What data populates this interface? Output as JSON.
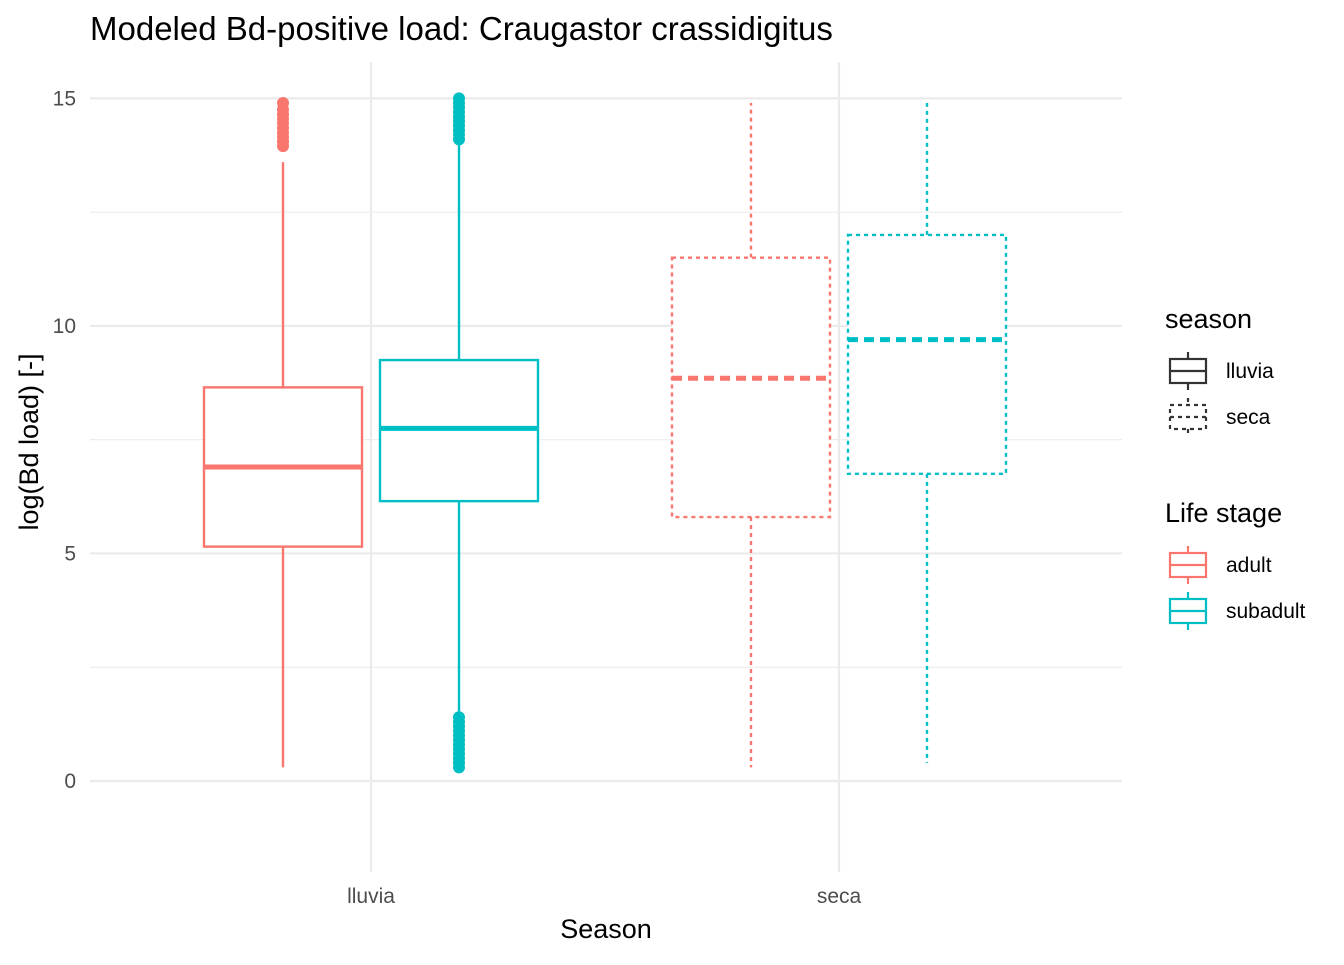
{
  "chart_data": {
    "type": "boxplot",
    "title": "Modeled Bd-positive load: Craugastor crassidigitus",
    "xlabel": "Season",
    "ylabel": "log(Bd load) [-]",
    "categories": [
      "lluvia",
      "seca"
    ],
    "ylim": [
      -2,
      15.8
    ],
    "yticks": [
      0,
      5,
      10,
      15
    ],
    "grid": true,
    "colors": {
      "adult": "#F8766D",
      "subadult": "#00BFC4"
    },
    "series": [
      {
        "name": "adult",
        "boxes": [
          {
            "category": "lluvia",
            "season": "lluvia",
            "whisker_low": 0.3,
            "q1": 5.15,
            "median": 6.9,
            "q3": 8.65,
            "whisker_high": 13.6,
            "outliers": [
              13.95,
              14.05,
              14.15,
              14.25,
              14.35,
              14.45,
              14.55,
              14.65,
              14.75,
              14.9
            ]
          },
          {
            "category": "seca",
            "season": "seca",
            "whisker_low": 0.3,
            "q1": 5.8,
            "median": 8.85,
            "q3": 11.5,
            "whisker_high": 14.9,
            "outliers": []
          }
        ]
      },
      {
        "name": "subadult",
        "boxes": [
          {
            "category": "lluvia",
            "season": "lluvia",
            "whisker_low": 1.45,
            "q1": 6.15,
            "median": 7.75,
            "q3": 9.25,
            "whisker_high": 14.05,
            "outliers": [
              0.3,
              0.4,
              0.5,
              0.6,
              0.7,
              0.8,
              0.9,
              1.0,
              1.1,
              1.2,
              1.3,
              1.4,
              14.1,
              14.2,
              14.3,
              14.4,
              14.5,
              14.6,
              14.7,
              14.8,
              14.9,
              15.0
            ]
          },
          {
            "category": "seca",
            "season": "seca",
            "whisker_low": 0.4,
            "q1": 6.75,
            "median": 9.7,
            "q3": 12.0,
            "whisker_high": 14.9,
            "outliers": []
          }
        ]
      }
    ],
    "legends": [
      {
        "title": "season",
        "items": [
          {
            "label": "lluvia",
            "linetype": "solid"
          },
          {
            "label": "seca",
            "linetype": "dotted"
          }
        ]
      },
      {
        "title": "Life stage",
        "items": [
          {
            "label": "adult",
            "color": "#F8766D"
          },
          {
            "label": "subadult",
            "color": "#00BFC4"
          }
        ]
      }
    ],
    "legend_position": "right"
  }
}
